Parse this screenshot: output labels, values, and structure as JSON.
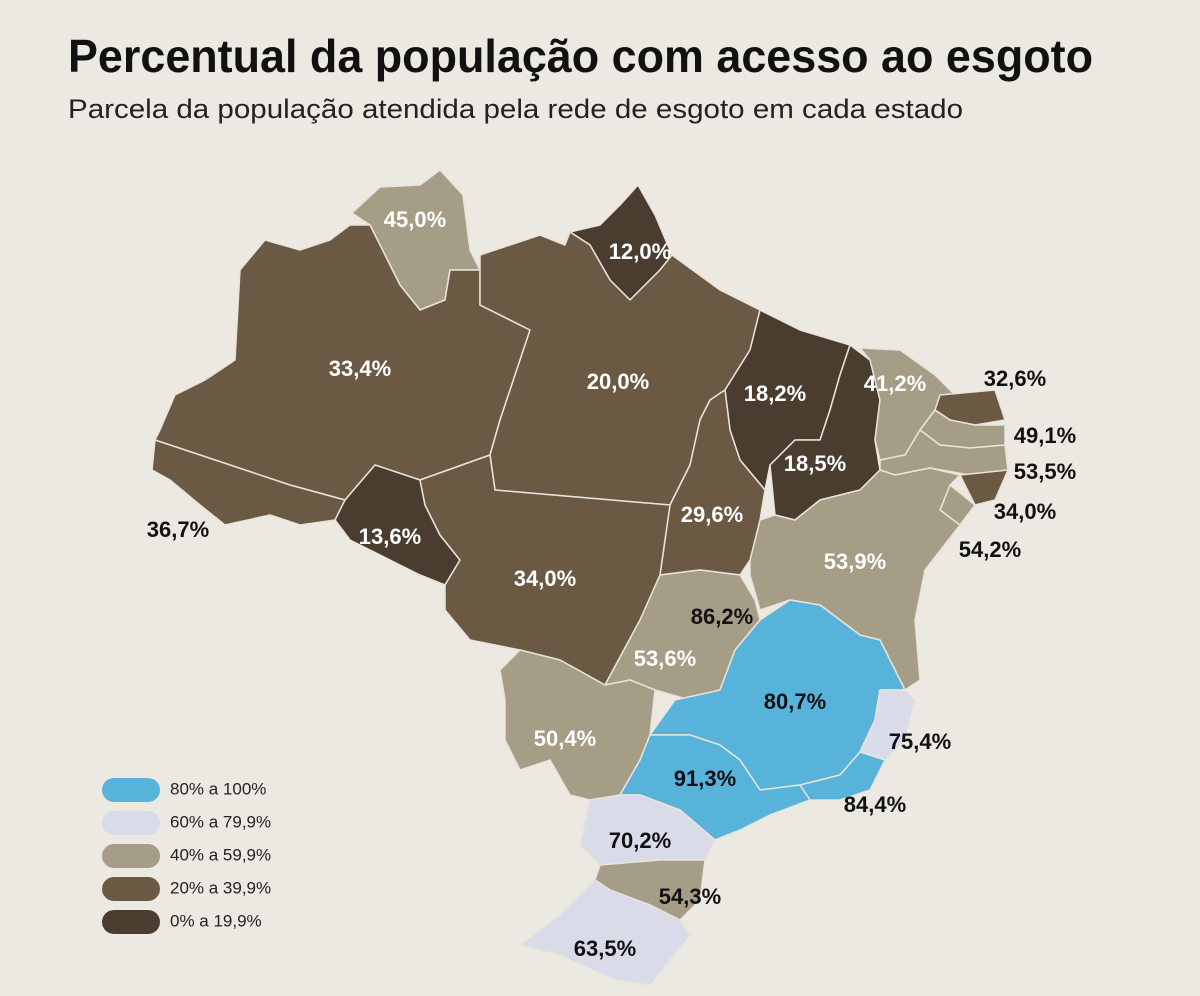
{
  "header": {
    "title": "Percentual da população com acesso ao esgoto",
    "subtitle": "Parcela da população atendida pela rede de esgoto em cada estado"
  },
  "regions": [
    {
      "label": "45,0%",
      "color": "#a59d86"
    },
    {
      "label": "12,0%",
      "color": "#4a3d30"
    },
    {
      "label": "33,4%",
      "color": "#6b5944"
    },
    {
      "label": "20,0%",
      "color": "#6b5944"
    },
    {
      "label": "18,2%",
      "color": "#4a3d30"
    },
    {
      "label": "18,5%",
      "color": "#4a3d30"
    },
    {
      "label": "41,2%",
      "color": "#a59d86"
    },
    {
      "label": "32,6%",
      "color": "#6b5944"
    },
    {
      "label": "49,1%",
      "color": "#a59d86"
    },
    {
      "label": "53,5%",
      "color": "#a59d86"
    },
    {
      "label": "34,0%",
      "color": "#6b5944"
    },
    {
      "label": "54,2%",
      "color": "#a59d86"
    },
    {
      "label": "53,9%",
      "color": "#a59d86"
    },
    {
      "label": "29,6%",
      "color": "#6b5944"
    },
    {
      "label": "36,7%",
      "color": "#6b5944"
    },
    {
      "label": "13,6%",
      "color": "#4a3d30"
    },
    {
      "label": "34,0%",
      "color": "#6b5944"
    },
    {
      "label": "86,2%",
      "color": "#57b3d9"
    },
    {
      "label": "53,6%",
      "color": "#a59d86"
    },
    {
      "label": "80,7%",
      "color": "#57b3d9"
    },
    {
      "label": "75,4%",
      "color": "#d9dbe9"
    },
    {
      "label": "50,4%",
      "color": "#a59d86"
    },
    {
      "label": "91,3%",
      "color": "#57b3d9"
    },
    {
      "label": "84,4%",
      "color": "#57b3d9"
    },
    {
      "label": "70,2%",
      "color": "#d9dbe9"
    },
    {
      "label": "54,3%",
      "color": "#a59d86"
    },
    {
      "label": "63,5%",
      "color": "#d9dbe9"
    }
  ],
  "legend": [
    {
      "label": "80% a 100%",
      "color": "#57b3d9"
    },
    {
      "label": "60% a 79,9%",
      "color": "#d9dbe9"
    },
    {
      "label": "40% a 59,9%",
      "color": "#a59d86"
    },
    {
      "label": "20% a 39,9%",
      "color": "#6b5944"
    },
    {
      "label": "0% a 19,9%",
      "color": "#4a3d30"
    }
  ]
}
